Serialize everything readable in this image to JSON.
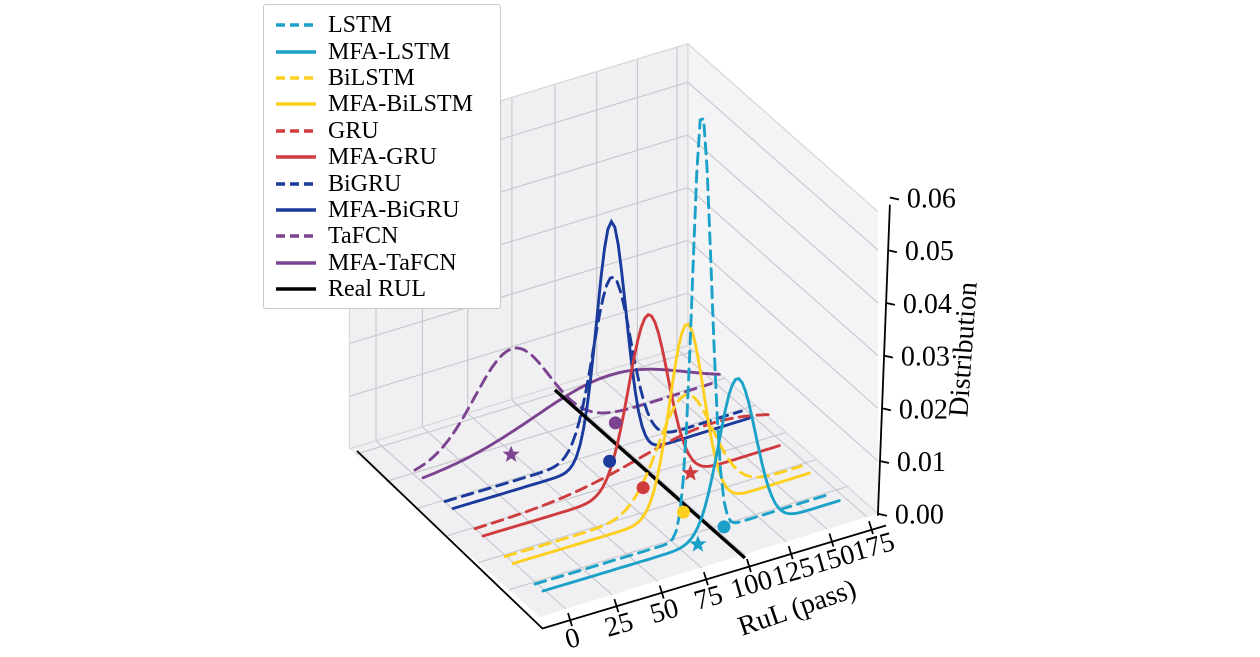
{
  "figure": {
    "background": "#ffffff",
    "pane_colors": {
      "back_wall": "#f0f0f2",
      "right_wall": "#f4f4f6",
      "floor": "#f0f0f2"
    },
    "grid_color": "#c8c8ce",
    "axis_color": "#000000"
  },
  "legend": {
    "items": [
      {
        "label": "LSTM",
        "style": "dashed",
        "color": "#1ca2c8"
      },
      {
        "label": "MFA-LSTM",
        "style": "solid",
        "color": "#1ca2c8"
      },
      {
        "label": "BiLSTM",
        "style": "dashed",
        "color": "#fdd020"
      },
      {
        "label": "MFA-BiLSTM",
        "style": "solid",
        "color": "#fdd020"
      },
      {
        "label": "GRU",
        "style": "dashed",
        "color": "#d03b3e"
      },
      {
        "label": "MFA-GRU",
        "style": "solid",
        "color": "#d03b3e"
      },
      {
        "label": "BiGRU",
        "style": "dashed",
        "color": "#1a3a9c"
      },
      {
        "label": "MFA-BiGRU",
        "style": "solid",
        "color": "#1a3a9c"
      },
      {
        "label": "TaFCN",
        "style": "dashed",
        "color": "#7c4390"
      },
      {
        "label": "MFA-TaFCN",
        "style": "solid",
        "color": "#7c4390"
      },
      {
        "label": "Real RUL",
        "style": "solid",
        "color": "#000000"
      }
    ]
  },
  "chart_data": {
    "type": "line",
    "projection": "3d",
    "xlabel": "RuL (pass)",
    "zlabel": "Distribution",
    "x_ticks": [
      0,
      25,
      50,
      75,
      100,
      125,
      150,
      175
    ],
    "z_ticks": [
      "0.00",
      "0.01",
      "0.02",
      "0.03",
      "0.04",
      "0.05",
      "0.06"
    ],
    "x_range": [
      0,
      172
    ],
    "z_range": [
      0,
      0.06
    ],
    "real_rul": 100,
    "series": [
      {
        "name": "LSTM",
        "color": "#1ca2c8",
        "style": "dashed",
        "pair": 0,
        "mean": 93,
        "sigma": 5.5,
        "amp": 0.081
      },
      {
        "name": "MFA-LSTM",
        "color": "#1ca2c8",
        "style": "solid",
        "pair": 0,
        "mean": 109,
        "sigma": 11,
        "amp": 0.0296
      },
      {
        "name": "BiLSTM",
        "color": "#fdd020",
        "style": "dashed",
        "pair": 1,
        "mean": 101,
        "sigma": 16,
        "amp": 0.0206
      },
      {
        "name": "MFA-BiLSTM",
        "color": "#fdd020",
        "style": "solid",
        "pair": 1,
        "mean": 97,
        "sigma": 10,
        "amp": 0.036
      },
      {
        "name": "GRU",
        "color": "#d03b3e",
        "style": "dashed",
        "pair": 2,
        "mean": 135,
        "sigma": 45,
        "amp": 0.0065
      },
      {
        "name": "MFA-GRU",
        "color": "#d03b3e",
        "style": "solid",
        "pair": 2,
        "mean": 92,
        "sigma": 11.5,
        "amp": 0.033
      },
      {
        "name": "BiGRU",
        "color": "#1a3a9c",
        "style": "dashed",
        "pair": 3,
        "mean": 93,
        "sigma": 11,
        "amp": 0.0335
      },
      {
        "name": "MFA-BiGRU",
        "color": "#1a3a9c",
        "style": "solid",
        "pair": 3,
        "mean": 88,
        "sigma": 8.5,
        "amp": 0.046
      },
      {
        "name": "TaFCN",
        "color": "#7c4390",
        "style": "dashed",
        "pair": 4,
        "mean": 53,
        "sigma": 21,
        "amp": 0.0185
      },
      {
        "name": "MFA-TaFCN",
        "color": "#7c4390",
        "style": "solid",
        "pair": 4,
        "mean": 105,
        "sigma": 45,
        "amp": 0.0095
      }
    ],
    "reference_line": {
      "name": "Real RUL",
      "color": "#000000",
      "x": 100
    },
    "markers": [
      {
        "shape": "star",
        "row": "MFA-TaFCN",
        "x": 48,
        "color": "#7c4390"
      },
      {
        "shape": "dot",
        "row": "MFA-TaFCN",
        "x": 108,
        "color": "#7c4390"
      },
      {
        "shape": "dot",
        "row": "MFA-BiGRU",
        "x": 87,
        "color": "#1a3a9c"
      },
      {
        "shape": "dot",
        "row": "MFA-GRU",
        "x": 89,
        "color": "#d03b3e"
      },
      {
        "shape": "star",
        "row": "MFA-GRU",
        "x": 117,
        "color": "#d03b3e"
      },
      {
        "shape": "dot",
        "row": "MFA-BiLSTM",
        "x": 95,
        "color": "#fdd020"
      },
      {
        "shape": "star",
        "row": "MFA-LSTM",
        "x": 86,
        "color": "#1ca2c8"
      },
      {
        "shape": "dot",
        "row": "LSTM",
        "x": 106,
        "color": "#1ca2c8"
      }
    ],
    "draw_order": [
      "TaFCN",
      "MFA-TaFCN",
      "BiGRU",
      "MFA-BiGRU",
      "GRU",
      "__real__",
      "MFA-GRU",
      "BiLSTM",
      "MFA-BiLSTM",
      "LSTM",
      "MFA-LSTM"
    ]
  }
}
